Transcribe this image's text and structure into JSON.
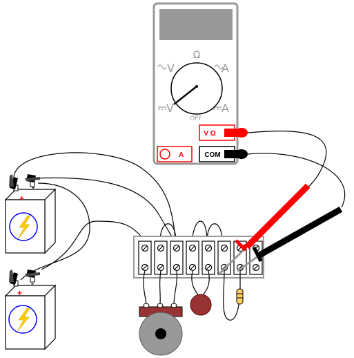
{
  "meter": {
    "dial_ohm": "Ω",
    "dial_ac_v": "V",
    "dial_ac_a": "A",
    "dial_dc_v": "V",
    "dial_dc_a": "A",
    "dial_off": "OFF",
    "jack_v_ohm": "V Ω",
    "jack_com": "COM",
    "jack_a": "A"
  },
  "batteries": {
    "top": {
      "plus": "+",
      "minus": "-"
    },
    "bottom": {
      "plus": "+",
      "minus": "-"
    }
  },
  "colors": {
    "red_lead": "#ff0000",
    "black_lead": "#000000",
    "meter_body": "#ffffff",
    "meter_display": "#999999",
    "battery_symbol": "#ffcc00",
    "battery_circle": "#0000ff",
    "speaker_base": "#993333",
    "speaker_cone": "#999999",
    "capacitor": "#993333",
    "resistor": "#ffcc66"
  }
}
